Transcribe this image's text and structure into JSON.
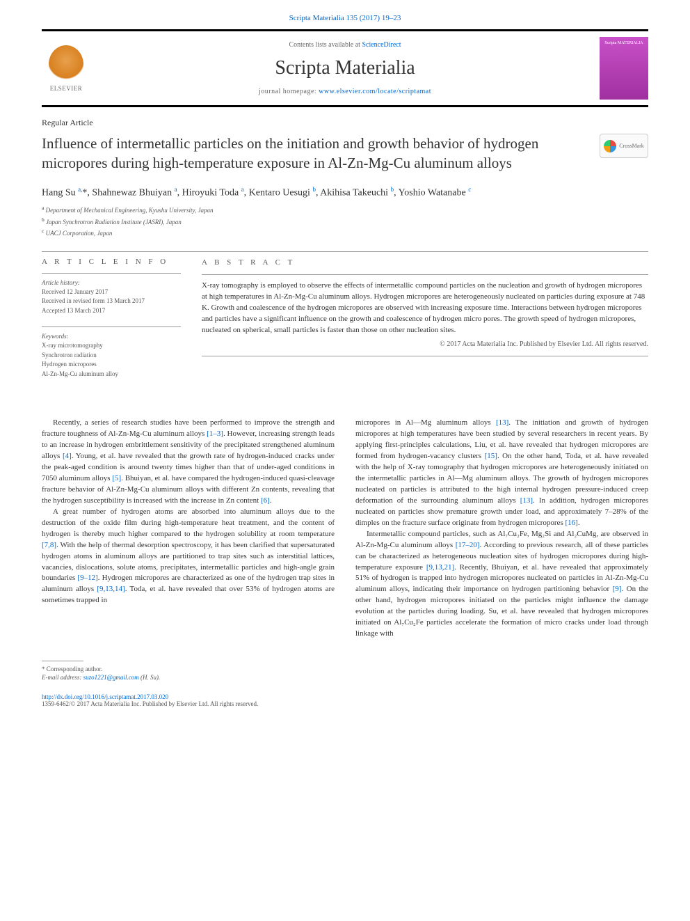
{
  "topLink": "Scripta Materialia 135 (2017) 19–23",
  "header": {
    "contentsPrefix": "Contents lists available at ",
    "contentsLink": "ScienceDirect",
    "journalName": "Scripta Materialia",
    "homepagePrefix": "journal homepage: ",
    "homepageUrl": "www.elsevier.com/locate/scriptamat",
    "elsevierLabel": "ELSEVIER",
    "coverLabel": "Scripta MATERIALIA"
  },
  "articleType": "Regular Article",
  "title": "Influence of intermetallic particles on the initiation and growth behavior of hydrogen micropores during high-temperature exposure in Al-Zn-Mg-Cu aluminum alloys",
  "crossmarkLabel": "CrossMark",
  "authors": {
    "a1": {
      "name": "Hang Su",
      "sup": "a,",
      "star": "*"
    },
    "a2": {
      "name": "Shahnewaz Bhuiyan",
      "sup": "a"
    },
    "a3": {
      "name": "Hiroyuki Toda",
      "sup": "a"
    },
    "a4": {
      "name": "Kentaro Uesugi",
      "sup": "b"
    },
    "a5": {
      "name": "Akihisa Takeuchi",
      "sup": "b"
    },
    "a6": {
      "name": "Yoshio Watanabe",
      "sup": "c"
    }
  },
  "affiliations": {
    "a": "Department of Mechanical Engineering, Kyushu University, Japan",
    "b": "Japan Synchrotron Radiation Institute (JASRI), Japan",
    "c": "UACJ Corporation, Japan"
  },
  "articleInfo": {
    "head": "A R T I C L E  I N F O",
    "historyLabel": "Article history:",
    "received": "Received 12 January 2017",
    "revised": "Received in revised form 13 March 2017",
    "accepted": "Accepted 13 March 2017",
    "keywordsLabel": "Keywords:",
    "k1": "X-ray microtomography",
    "k2": "Synchrotron radiation",
    "k3": "Hydrogen micropores",
    "k4": "Al-Zn-Mg-Cu aluminum alloy"
  },
  "abstract": {
    "head": "A B S T R A C T",
    "text": "X-ray tomography is employed to observe the effects of intermetallic compound particles on the nucleation and growth of hydrogen micropores at high temperatures in Al-Zn-Mg-Cu aluminum alloys. Hydrogen micropores are heterogeneously nucleated on particles during exposure at 748 K. Growth and coalescence of the hydrogen micropores are observed with increasing exposure time. Interactions between hydrogen micropores and particles have a significant influence on the growth and coalescence of hydrogen micro pores. The growth speed of hydrogen micropores, nucleated on spherical, small particles is faster than those on other nucleation sites.",
    "copyright": "© 2017 Acta Materialia Inc. Published by Elsevier Ltd. All rights reserved."
  },
  "body": {
    "p1a": "Recently, a series of research studies have been performed to improve the strength and fracture toughness of Al-Zn-Mg-Cu aluminum alloys ",
    "p1r1": "[1–3]",
    "p1b": ". However, increasing strength leads to an increase in hydrogen embrittlement sensitivity of the precipitated strengthened aluminum alloys ",
    "p1r2": "[4]",
    "p1c": ". Young, et al. have revealed that the growth rate of hydrogen-induced cracks under the peak-aged condition is around twenty times higher than that of under-aged conditions in 7050 aluminum alloys ",
    "p1r3": "[5]",
    "p1d": ". Bhuiyan, et al. have compared the hydrogen-induced quasi-cleavage fracture behavior of Al-Zn-Mg-Cu aluminum alloys with different Zn contents, revealing that the hydrogen susceptibility is increased with the increase in Zn content ",
    "p1r4": "[6]",
    "p1e": ".",
    "p2a": "A great number of hydrogen atoms are absorbed into aluminum alloys due to the destruction of the oxide film during high-temperature heat treatment, and the content of hydrogen is thereby much higher compared to the hydrogen solubility at room temperature ",
    "p2r1": "[7,8]",
    "p2b": ". With the help of thermal desorption spectroscopy, it has been clarified that supersaturated hydrogen atoms in aluminum alloys are partitioned to trap sites such as interstitial lattices, vacancies, dislocations, solute atoms, precipitates, intermetallic particles and high-angle grain boundaries ",
    "p2r2": "[9–12]",
    "p2c": ". Hydrogen micropores are characterized as one of the hydrogen trap sites in aluminum alloys ",
    "p2r3": "[9,13,14]",
    "p2d": ". Toda, et al. have revealed that over 53% of hydrogen atoms are sometimes trapped in",
    "p3a": "micropores in Al",
    "dashMg": "—",
    "p3a2": "Mg aluminum alloys ",
    "p3r1": "[13]",
    "p3b": ". The initiation and growth of hydrogen micropores at high temperatures have been studied by several researchers in recent years. By applying first-principles calculations, Liu, et al. have revealed that hydrogen micropores are formed from hydrogen-vacancy clusters ",
    "p3r2": "[15]",
    "p3c": ". On the other hand, Toda, et al. have revealed with the help of X-ray tomography that hydrogen micropores are heterogeneously initiated on the intermetallic particles in Al",
    "p3c2": "Mg aluminum alloys. The growth of hydrogen micropores nucleated on particles is attributed to the high internal hydrogen pressure-induced creep deformation of the surrounding aluminum alloys ",
    "p3r3": "[13]",
    "p3d": ". In addition, hydrogen micropores nucleated on particles show premature growth under load, and approximately 7–28% of the dimples on the fracture surface originate from hydrogen micropores ",
    "p3r4": "[16]",
    "p3e": ".",
    "p4a": "Intermetallic compound particles, such as Al₇Cu₂Fe, Mg₂Si and Al₂CuMg, are observed in Al-Zn-Mg-Cu aluminum alloys ",
    "p4r1": "[17–20]",
    "p4b": ". According to previous research, all of these particles can be characterized as heterogeneous nucleation sites of hydrogen micropores during high-temperature exposure ",
    "p4r2": "[9,13,21]",
    "p4c": ". Recently, Bhuiyan, et al. have revealed that approximately 51% of hydrogen is trapped into hydrogen micropores nucleated on particles in Al-Zn-Mg-Cu aluminum alloys, indicating their importance on hydrogen partitioning behavior ",
    "p4r3": "[9]",
    "p4d": ". On the other hand, hydrogen micropores initiated on the particles might influence the damage evolution at the particles during loading. Su, et al. have revealed that hydrogen micropores initiated on Al₇Cu₂Fe particles accelerate the formation of micro cracks under load through linkage with"
  },
  "footer": {
    "corrLabel": "* Corresponding author.",
    "emailLabel": "E-mail address: ",
    "email": "suzo1221@gmail.com",
    "emailName": " (H. Su).",
    "doi": "http://dx.doi.org/10.1016/j.scriptamat.2017.03.020",
    "issn": "1359-6462/© 2017 Acta Materialia Inc. Published by Elsevier Ltd. All rights reserved."
  },
  "colors": {
    "link": "#0066cc",
    "text": "#333333",
    "muted": "#555555",
    "border": "#000000"
  }
}
